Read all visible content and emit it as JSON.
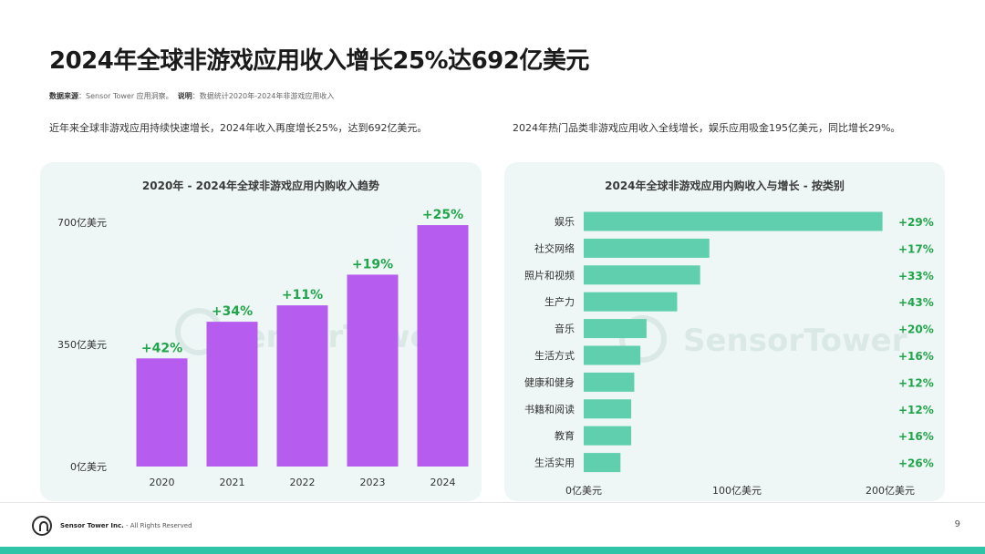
{
  "header": {
    "title": "2024年全球非游戏应用收入增长25%达692亿美元",
    "source_label": "数据来源",
    "source_text": "：Sensor Tower 应用洞察。",
    "note_label": "说明",
    "note_text": "：数据统计2020年-2024年非游戏应用收入"
  },
  "descriptions": {
    "left": "近年来全球非游戏应用持续快速增长，2024年收入再度增长25%，达到692亿美元。",
    "right": "2024年热门品类非游戏应用收入全线增长，娱乐应用吸金195亿美元，同比增长29%。"
  },
  "watermark": "SensorTower",
  "chart_data": [
    {
      "type": "bar",
      "orientation": "vertical",
      "title": "2020年 - 2024年全球非游戏应用内购收入趋势",
      "categories": [
        "2020",
        "2021",
        "2022",
        "2023",
        "2024"
      ],
      "values": [
        310,
        415,
        462,
        550,
        692
      ],
      "unit": "亿美元",
      "growth_labels": [
        "+42%",
        "+34%",
        "+11%",
        "+19%",
        "+25%"
      ],
      "ylim": [
        0,
        700
      ],
      "yticks": [
        0,
        350,
        700
      ],
      "ytick_labels": [
        "0亿美元",
        "350亿美元",
        "700亿美元"
      ],
      "color": "#b65df0",
      "label_color": "#21a54b",
      "grid": false
    },
    {
      "type": "bar",
      "orientation": "horizontal",
      "title": "2024年全球非游戏应用内购收入与增长 - 按类别",
      "categories": [
        "娱乐",
        "社交网络",
        "照片和视频",
        "生产力",
        "音乐",
        "生活方式",
        "健康和健身",
        "书籍和阅读",
        "教育",
        "生活实用"
      ],
      "values": [
        195,
        82,
        76,
        61,
        41,
        37,
        33,
        31,
        31,
        24
      ],
      "unit": "亿美元",
      "growth_labels": [
        "+29%",
        "+17%",
        "+33%",
        "+43%",
        "+20%",
        "+16%",
        "+12%",
        "+12%",
        "+16%",
        "+26%"
      ],
      "xlim": [
        0,
        200
      ],
      "xticks": [
        0,
        100,
        200
      ],
      "xtick_labels": [
        "0亿美元",
        "100亿美元",
        "200亿美元"
      ],
      "color": "#5fcfad",
      "label_color": "#21a54b",
      "grid": false
    }
  ],
  "footer": {
    "company": "Sensor Tower Inc.",
    "rights": " - All Rights Reserved",
    "page_number": "9"
  },
  "colors": {
    "panel_bg": "#eef7f5",
    "accent_bar": "#2fc4a8"
  }
}
